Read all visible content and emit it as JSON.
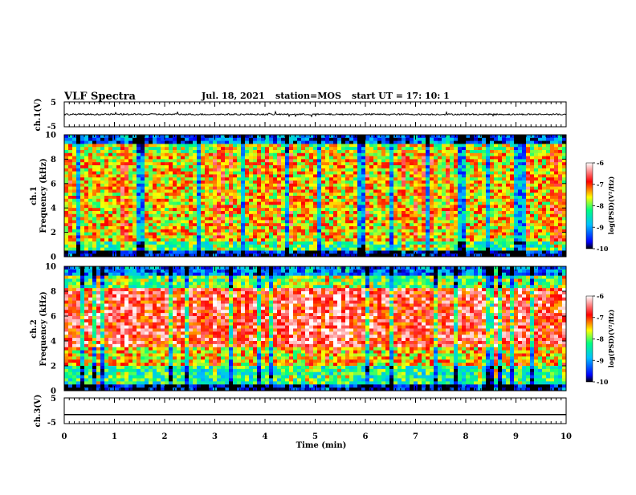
{
  "header": {
    "title": "VLF Spectra",
    "date": "Jul. 18, 2021",
    "station": "station=MOS",
    "start": "start UT =  17: 10: 1"
  },
  "chart_data": {
    "type": "heatmap",
    "x_axis": {
      "label": "Time (min)",
      "range": [
        0,
        10
      ],
      "ticks": [
        "0",
        "1",
        "2",
        "3",
        "4",
        "5",
        "6",
        "7",
        "8",
        "9",
        "10"
      ]
    },
    "panels": [
      {
        "label": "ch.1(V)",
        "type": "line",
        "ylim": [
          -5,
          5
        ],
        "ticks": [
          "5",
          "-5"
        ],
        "level": 0
      },
      {
        "label_top": "ch.1",
        "label_bottom": "Frequency (kHz)",
        "type": "spectrogram",
        "ylim": [
          0,
          10
        ],
        "ticks": [
          "10",
          "8",
          "6",
          "4",
          "2",
          "0"
        ]
      },
      {
        "label_top": "ch.2",
        "label_bottom": "Frequency (kHz)",
        "type": "spectrogram",
        "ylim": [
          0,
          10
        ],
        "ticks": [
          "10",
          "8",
          "6",
          "4",
          "2",
          "0"
        ]
      },
      {
        "label": "ch.3(V)",
        "type": "line",
        "ylim": [
          -5,
          5
        ],
        "ticks": [
          "5",
          "-5"
        ],
        "level": -1.5
      }
    ],
    "colorbar": {
      "label": "log(PSD)(V²/Hz)",
      "ticks": [
        "-6",
        "-7",
        "-8",
        "-9",
        "-10"
      ],
      "range": [
        -10,
        -6
      ],
      "colors": [
        "#000000",
        "#0000ff",
        "#00c0ff",
        "#00ff80",
        "#ffff00",
        "#ff0000",
        "#ffffff"
      ]
    }
  }
}
